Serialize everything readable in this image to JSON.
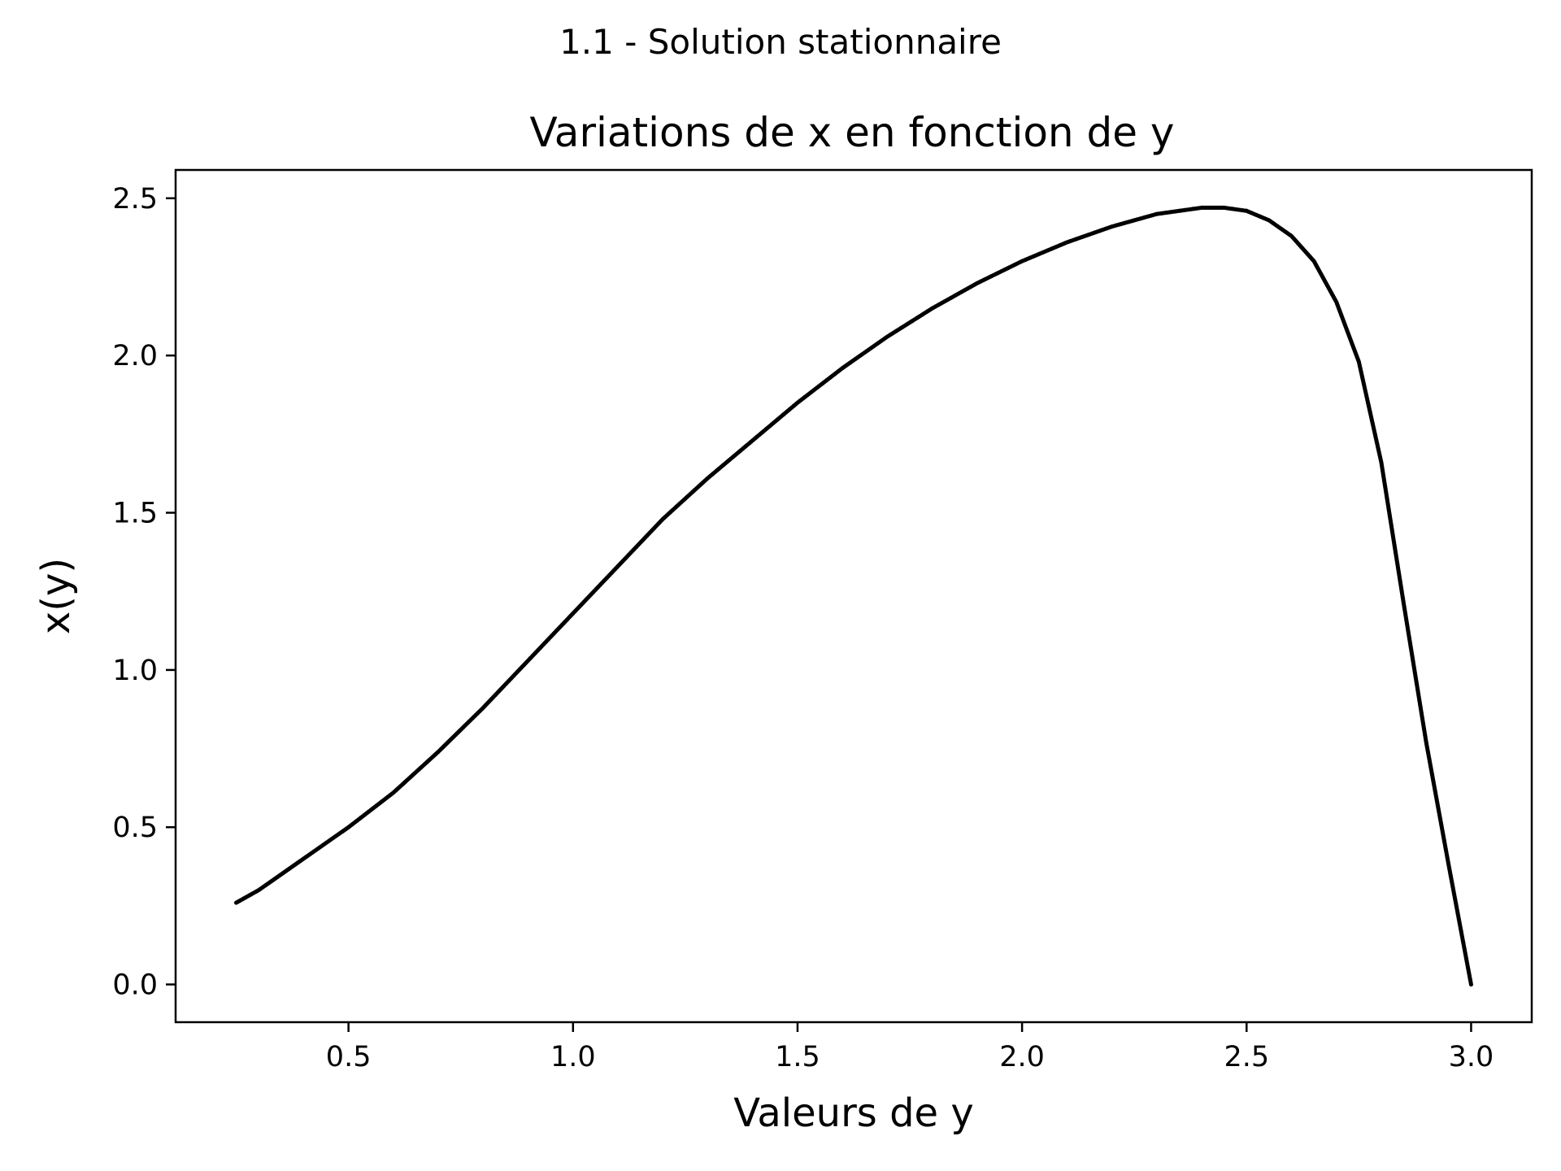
{
  "figure": {
    "suptitle": "1.1 - Solution stationnaire"
  },
  "chart_data": {
    "type": "scatter",
    "title": "Variations de x en fonction de y",
    "xlabel": "Valeurs de y",
    "ylabel": "x(y)",
    "xlim": [
      0.115,
      3.135
    ],
    "ylim": [
      -0.12,
      2.59
    ],
    "xticks": [
      0.5,
      1.0,
      1.5,
      2.0,
      2.5,
      3.0
    ],
    "xtick_labels": [
      "0.5",
      "1.0",
      "1.5",
      "2.0",
      "2.5",
      "3.0"
    ],
    "yticks": [
      0.0,
      0.5,
      1.0,
      1.5,
      2.0,
      2.5
    ],
    "ytick_labels": [
      "0.0",
      "0.5",
      "1.0",
      "1.5",
      "2.0",
      "2.5"
    ],
    "grid": false,
    "legend": "none",
    "marker_color": "#000000",
    "series": [
      {
        "x": [
          0.25,
          0.3,
          0.4,
          0.5,
          0.6,
          0.7,
          0.8,
          0.9,
          1.0,
          1.1,
          1.2,
          1.3,
          1.4,
          1.5,
          1.6,
          1.7,
          1.8,
          1.9,
          2.0,
          2.1,
          2.2,
          2.3,
          2.4,
          2.45,
          2.5,
          2.55,
          2.6,
          2.65,
          2.7,
          2.75,
          2.8,
          2.85,
          2.9,
          2.95,
          3.0
        ],
        "y": [
          0.26,
          0.3,
          0.4,
          0.5,
          0.61,
          0.74,
          0.88,
          1.03,
          1.18,
          1.33,
          1.48,
          1.61,
          1.73,
          1.85,
          1.96,
          2.06,
          2.15,
          2.23,
          2.3,
          2.36,
          2.41,
          2.45,
          2.47,
          2.47,
          2.46,
          2.43,
          2.38,
          2.3,
          2.17,
          1.98,
          1.66,
          1.21,
          0.77,
          0.38,
          0.0
        ]
      }
    ]
  }
}
